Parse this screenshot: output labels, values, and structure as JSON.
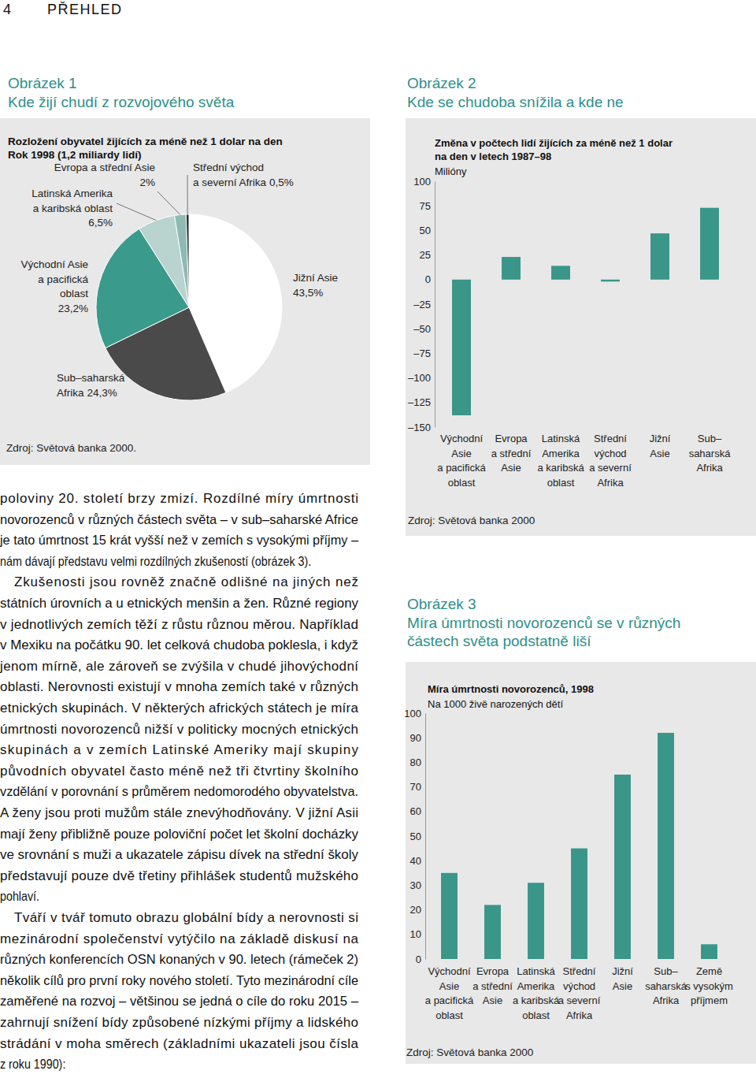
{
  "header": {
    "page_number": "4",
    "section": "PŘEHLED"
  },
  "chart_data": [
    {
      "type": "pie",
      "figure": "Obrázek 1",
      "title": "Kde žijí chudí z rozvojového světa",
      "subtitle": "Rozložení obyvatel žijících za méně než 1 dolar na den\nRok 1998 (1,2 miliardy lidí)",
      "categories": [
        "Jižní Asie",
        "Sub–saharská\nAfrika",
        "Východní Asie\na pacifická\noblast",
        "Latinská Amerika\na karibská oblast",
        "Evropa a střední Asie",
        "Střední východ\na severní Afrika"
      ],
      "values": [
        43.5,
        24.3,
        23.2,
        6.5,
        2,
        0.5
      ],
      "value_labels": [
        "43,5%",
        "24,3%",
        "23,2%",
        "6,5%",
        "2%",
        "0,5%"
      ],
      "colors": [
        "#ffffff",
        "#4a4a4a",
        "#3a9a8c",
        "#b9d3cf",
        "#8fbab3",
        "#2b2b2b"
      ],
      "source": "Zdroj: Světová banka 2000."
    },
    {
      "type": "bar",
      "figure": "Obrázek 2",
      "title": "Kde se chudoba snížila a kde ne",
      "subtitle": "Změna v počtech lidí žijících za méně než 1 dolar\nna den v letech 1987–98",
      "y_label": "Milióny",
      "categories": [
        "Východní\nAsie\na pacifická\noblast",
        "Evropa\na střední\nAsie",
        "Latinská\nAmerika\na karibská\noblast",
        "Střední\nvýchod\na severní\nAfrika",
        "Jižní\nAsie",
        "Sub–\nsaharská\nAfrika"
      ],
      "values": [
        -138,
        23,
        14,
        -2,
        47,
        73
      ],
      "color": "#3a9688",
      "ylim": [
        -150,
        100
      ],
      "yticks": [
        {
          "value": -150,
          "label": "–150"
        },
        {
          "value": -125,
          "label": "–125"
        },
        {
          "value": -100,
          "label": "–100"
        },
        {
          "value": -75,
          "label": "–75"
        },
        {
          "value": -50,
          "label": "–50"
        },
        {
          "value": -25,
          "label": "–25"
        },
        0,
        25,
        50,
        75,
        100
      ],
      "grid": false,
      "source": "Zdroj: Světová banka 2000"
    },
    {
      "type": "bar",
      "figure": "Obrázek 3",
      "title": "Míra úmrtnosti novorozenců se v různých\nčástech světa podstatně liší",
      "subtitle": "Míra úmrtnosti novorozenců, 1998",
      "y_label": "Na 1000 živě narozených dětí",
      "categories": [
        "Východní\nAsie\na pacifická\noblast",
        "Evropa\na střední\nAsie",
        "Latinská\nAmerika\na karibská\noblast",
        "Střední\nvýchod\na severní\nAfrika",
        "Jižní\nAsie",
        "Sub–\nsaharská\nAfrika",
        "Země\ns vysokým\npříjmem"
      ],
      "values": [
        35,
        22,
        31,
        45,
        75,
        92,
        6
      ],
      "color": "#3a9688",
      "ylim": [
        0,
        100
      ],
      "yticks": [
        0,
        10,
        20,
        30,
        40,
        50,
        60,
        70,
        80,
        90,
        100
      ],
      "grid": false,
      "source": "Zdroj: Světová banka 2000"
    }
  ],
  "body": {
    "paragraphs": [
      [
        "poloviny 20. století brzy zmizí. Rozdílné míry úmrtnosti",
        "novorozenců v různých částech světa – v sub–saharské Africe",
        "je tato úmrtnost 15 krát vyšší než v zemích s vysokými příjmy –",
        "nám dávají představu velmi rozdílných zkušeností (obrázek 3)."
      ],
      [
        "Zkušenosti jsou rovněž značně odlišné na jiných než",
        "státních úrovních a u etnických menšin a žen. Různé regiony",
        "v jednotlivých zemích těží z růstu různou měrou. Například",
        "v Mexiku na počátku 90. let celková chudoba poklesla, i když",
        "jenom mírně, ale zároveň se zvýšila v chudé jihovýchodní",
        "oblasti. Nerovnosti existují v mnoha zemích také v různých",
        "etnických skupinách. V některých afrických státech je míra",
        "úmrtnosti novorozenců nižší v politicky mocných etnických",
        "skupinách a v zemích Latinské Ameriky mají skupiny",
        "původních obyvatel často méně než tři čtvrtiny školního",
        "vzdělání v porovnání s průměrem nedomorodého obyvatelstva.",
        "A ženy jsou proti mužům stále znevýhodňovány. V jižní Asii",
        "mají ženy přibližně pouze poloviční počet let školní docházky",
        "ve srovnání s muži a ukazatele zápisu dívek na střední školy",
        "představují pouze dvě třetiny přihlášek studentů mužského",
        "pohlaví."
      ],
      [
        "Tváří v tvář tomuto obrazu globální bídy a nerovnosti si",
        "mezinárodní společenství vytýčilo na základě diskusí na",
        "různých konferencích OSN konaných v 90. letech (rámeček 2)",
        "několik cílů pro první roky nového století. Tyto mezinárodní cíle",
        "zaměřené na rozvoj – většinou se jedná o cíle do roku 2015 –",
        "zahrnují snížení bídy způsobené nízkými příjmy a lidského",
        "strádání v moha směrech (základními ukazateli jsou čísla",
        "z roku 1990):"
      ]
    ]
  }
}
